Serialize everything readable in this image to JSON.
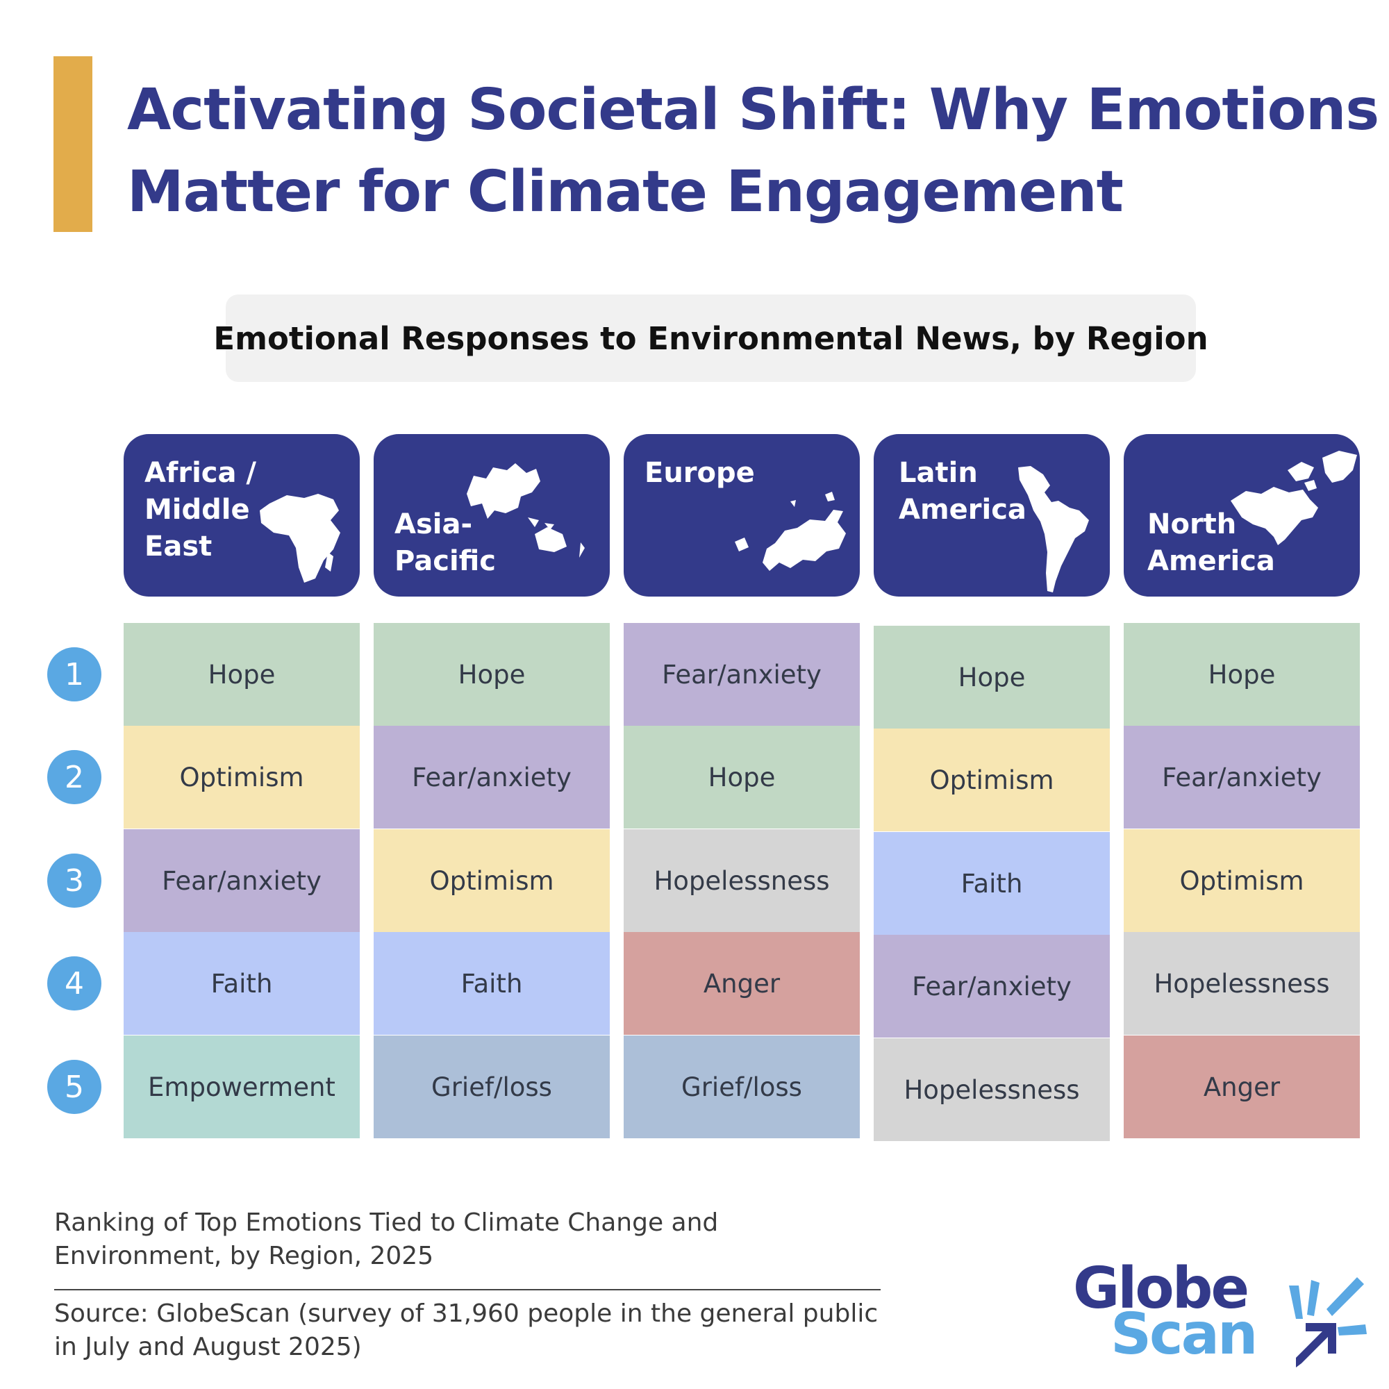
{
  "title_lines": [
    "Activating Societal Shift: Why Emotions",
    "Matter for Climate Engagement"
  ],
  "chart_data": {
    "type": "table",
    "title": "Emotional Responses to Environmental News, by Region",
    "ranks": [
      "1",
      "2",
      "3",
      "4",
      "5"
    ],
    "regions": [
      {
        "name": "Africa /\nMiddle\nEast",
        "icon": "africa-map-icon",
        "emotions": [
          "Hope",
          "Optimism",
          "Fear/anxiety",
          "Faith",
          "Empowerment"
        ]
      },
      {
        "name": "Asia-\nPacific",
        "icon": "asia-pacific-map-icon",
        "emotions": [
          "Hope",
          "Fear/anxiety",
          "Optimism",
          "Faith",
          "Grief/loss"
        ]
      },
      {
        "name": "Europe",
        "icon": "europe-map-icon",
        "emotions": [
          "Fear/anxiety",
          "Hope",
          "Hopelessness",
          "Anger",
          "Grief/loss"
        ]
      },
      {
        "name": "Latin\nAmerica",
        "icon": "latin-america-map-icon",
        "emotions": [
          "Hope",
          "Optimism",
          "Faith",
          "Fear/anxiety",
          "Hopelessness"
        ]
      },
      {
        "name": "North\nAmerica",
        "icon": "north-america-map-icon",
        "emotions": [
          "Hope",
          "Fear/anxiety",
          "Optimism",
          "Hopelessness",
          "Anger"
        ]
      }
    ]
  },
  "emotion_colors": {
    "Hope": "#C1D8C4",
    "Optimism": "#F7E6B3",
    "Fear/anxiety": "#BCB1D5",
    "Faith": "#B8C9F8",
    "Empowerment": "#B3D9D3",
    "Grief/loss": "#ACBFD8",
    "Hopelessness": "#D5D5D5",
    "Anger": "#D5A19E"
  },
  "caption": "Ranking of Top Emotions Tied to Climate Change and Environment, by Region, 2025",
  "source": "Source: GlobeScan (survey of 31,960 people in the general public in July and August 2025)",
  "logo": {
    "line1": "Globe",
    "line2": "Scan",
    "icon": "globescan-burst-icon"
  },
  "colors": {
    "navy": "#333A8A",
    "accent_gold": "#E2AC4B",
    "rank_blue": "#5AA8E3",
    "logo_light_blue": "#5AA8E3"
  }
}
